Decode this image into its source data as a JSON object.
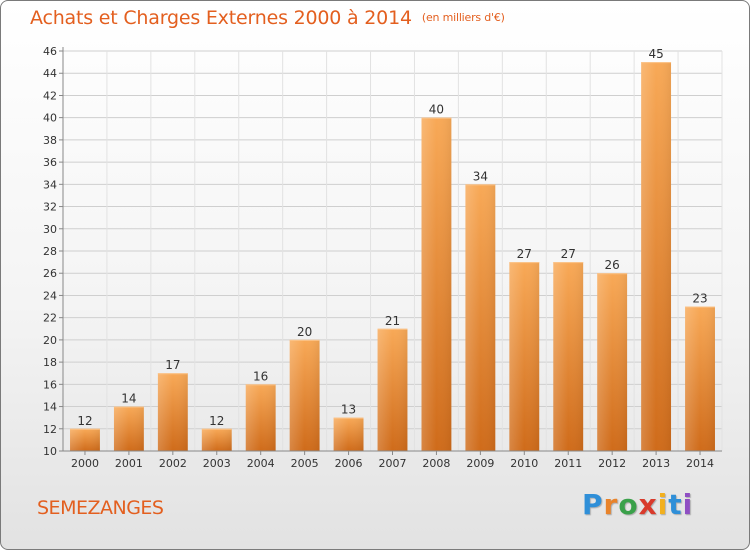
{
  "header": {
    "title": "Achats et Charges Externes 2000 à 2014",
    "unit": "(en milliers d'€)"
  },
  "footer": {
    "town": "SEMEZANGES",
    "brand_letters": [
      "P",
      "r",
      "o",
      "x",
      "i",
      "t",
      "i"
    ],
    "brand_colors": [
      "#2f8fd8",
      "#e8832a",
      "#3aa14a",
      "#d93a2b",
      "#f2b01e",
      "#2f8fd8",
      "#8f4fc3"
    ]
  },
  "colors": {
    "accent": "#e35f1f",
    "bar_light": "#f7a55a",
    "bar_dark": "#cf6d1c"
  },
  "chart_data": {
    "type": "bar",
    "title": "Achats et Charges Externes 2000 à 2014",
    "categories": [
      "2000",
      "2001",
      "2002",
      "2003",
      "2004",
      "2005",
      "2006",
      "2007",
      "2008",
      "2009",
      "2010",
      "2011",
      "2012",
      "2013",
      "2014"
    ],
    "values": [
      12,
      14,
      17,
      12,
      16,
      20,
      13,
      21,
      40,
      34,
      27,
      27,
      26,
      45,
      23
    ],
    "ylim": [
      10,
      46
    ],
    "yticks": [
      10,
      12,
      14,
      16,
      18,
      20,
      22,
      24,
      26,
      28,
      30,
      32,
      34,
      36,
      38,
      40,
      42,
      44,
      46
    ],
    "grid": true,
    "data_labels": true
  }
}
